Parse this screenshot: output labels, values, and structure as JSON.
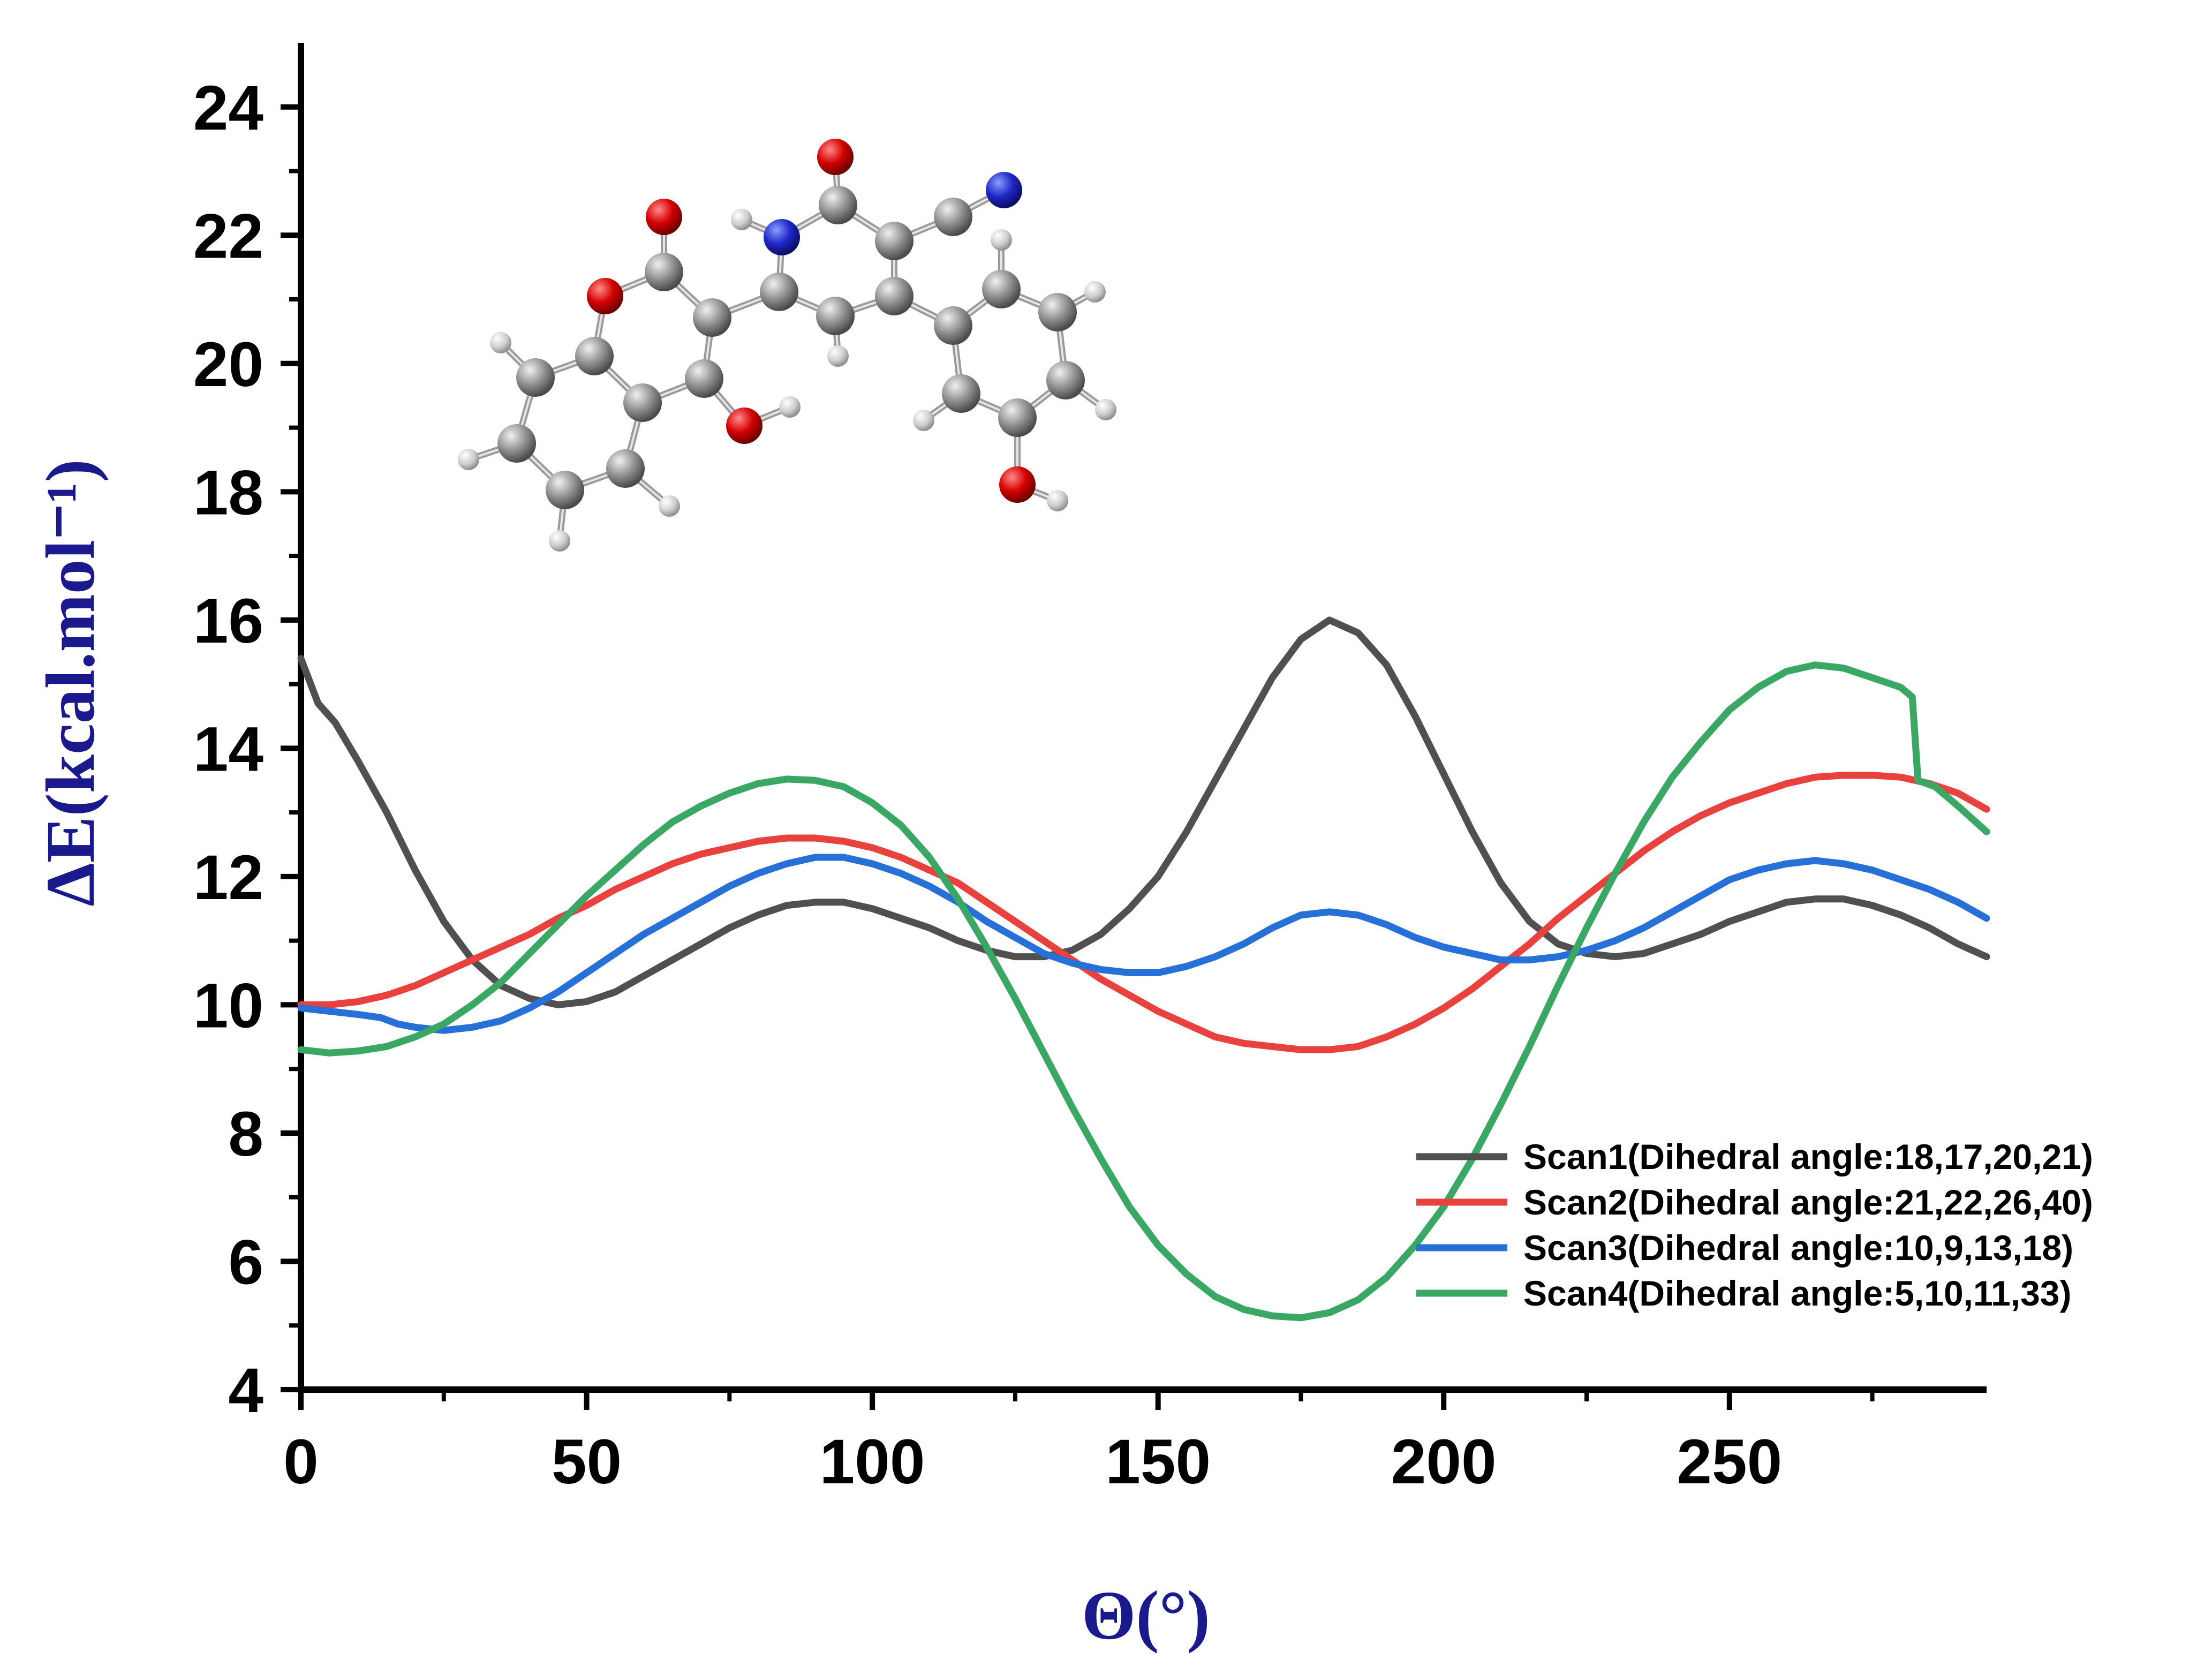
{
  "chart_data": {
    "type": "line",
    "title": "",
    "xlabel": "Θ(°)",
    "ylabel": "ΔE(kcal.mol⁻¹)",
    "xlim": [
      0,
      295
    ],
    "ylim": [
      4,
      25
    ],
    "xticks": [
      0,
      50,
      100,
      150,
      200,
      250
    ],
    "xtick_labels": [
      "0",
      "50",
      "100",
      "150",
      "200",
      "250"
    ],
    "yticks": [
      4,
      6,
      8,
      10,
      12,
      14,
      16,
      18,
      20,
      22,
      24
    ],
    "ytick_labels": [
      "4",
      "6",
      "8",
      "10",
      "12",
      "14",
      "16",
      "18",
      "20",
      "22",
      "24"
    ],
    "legend_position": "bottom-right",
    "series": [
      {
        "name": "Scan1(Dihedral angle:18,17,20,21)",
        "color": "#505050",
        "points": [
          [
            0,
            15.4
          ],
          [
            3,
            14.7
          ],
          [
            6,
            14.4
          ],
          [
            10,
            13.8
          ],
          [
            15,
            13.0
          ],
          [
            20,
            12.1
          ],
          [
            25,
            11.3
          ],
          [
            30,
            10.7
          ],
          [
            35,
            10.3
          ],
          [
            40,
            10.1
          ],
          [
            45,
            10.0
          ],
          [
            50,
            10.05
          ],
          [
            55,
            10.2
          ],
          [
            60,
            10.45
          ],
          [
            65,
            10.7
          ],
          [
            70,
            10.95
          ],
          [
            75,
            11.2
          ],
          [
            80,
            11.4
          ],
          [
            85,
            11.55
          ],
          [
            90,
            11.6
          ],
          [
            95,
            11.6
          ],
          [
            100,
            11.5
          ],
          [
            105,
            11.35
          ],
          [
            110,
            11.2
          ],
          [
            115,
            11.0
          ],
          [
            120,
            10.85
          ],
          [
            125,
            10.75
          ],
          [
            130,
            10.75
          ],
          [
            135,
            10.85
          ],
          [
            140,
            11.1
          ],
          [
            145,
            11.5
          ],
          [
            150,
            12.0
          ],
          [
            155,
            12.7
          ],
          [
            160,
            13.5
          ],
          [
            165,
            14.3
          ],
          [
            170,
            15.1
          ],
          [
            175,
            15.7
          ],
          [
            180,
            16.0
          ],
          [
            185,
            15.8
          ],
          [
            190,
            15.3
          ],
          [
            195,
            14.5
          ],
          [
            200,
            13.6
          ],
          [
            205,
            12.7
          ],
          [
            210,
            11.9
          ],
          [
            215,
            11.3
          ],
          [
            220,
            10.95
          ],
          [
            225,
            10.8
          ],
          [
            230,
            10.75
          ],
          [
            235,
            10.8
          ],
          [
            240,
            10.95
          ],
          [
            245,
            11.1
          ],
          [
            250,
            11.3
          ],
          [
            255,
            11.45
          ],
          [
            260,
            11.6
          ],
          [
            265,
            11.65
          ],
          [
            270,
            11.65
          ],
          [
            275,
            11.55
          ],
          [
            280,
            11.4
          ],
          [
            285,
            11.2
          ],
          [
            290,
            10.95
          ],
          [
            295,
            10.75
          ]
        ]
      },
      {
        "name": "Scan2(Dihedral angle:21,22,26,40)",
        "color": "#e8413e",
        "points": [
          [
            0,
            10.0
          ],
          [
            5,
            10.0
          ],
          [
            10,
            10.05
          ],
          [
            15,
            10.15
          ],
          [
            20,
            10.3
          ],
          [
            25,
            10.5
          ],
          [
            30,
            10.7
          ],
          [
            35,
            10.9
          ],
          [
            40,
            11.1
          ],
          [
            45,
            11.35
          ],
          [
            50,
            11.55
          ],
          [
            55,
            11.8
          ],
          [
            60,
            12.0
          ],
          [
            65,
            12.2
          ],
          [
            70,
            12.35
          ],
          [
            75,
            12.45
          ],
          [
            80,
            12.55
          ],
          [
            85,
            12.6
          ],
          [
            90,
            12.6
          ],
          [
            95,
            12.55
          ],
          [
            100,
            12.45
          ],
          [
            105,
            12.3
          ],
          [
            110,
            12.1
          ],
          [
            115,
            11.9
          ],
          [
            120,
            11.6
          ],
          [
            125,
            11.3
          ],
          [
            130,
            11.0
          ],
          [
            135,
            10.7
          ],
          [
            140,
            10.4
          ],
          [
            145,
            10.15
          ],
          [
            150,
            9.9
          ],
          [
            155,
            9.7
          ],
          [
            160,
            9.5
          ],
          [
            165,
            9.4
          ],
          [
            170,
            9.35
          ],
          [
            175,
            9.3
          ],
          [
            180,
            9.3
          ],
          [
            185,
            9.35
          ],
          [
            190,
            9.5
          ],
          [
            195,
            9.7
          ],
          [
            200,
            9.95
          ],
          [
            205,
            10.25
          ],
          [
            210,
            10.6
          ],
          [
            215,
            10.95
          ],
          [
            220,
            11.35
          ],
          [
            225,
            11.7
          ],
          [
            230,
            12.05
          ],
          [
            235,
            12.4
          ],
          [
            240,
            12.7
          ],
          [
            245,
            12.95
          ],
          [
            250,
            13.15
          ],
          [
            255,
            13.3
          ],
          [
            260,
            13.45
          ],
          [
            265,
            13.55
          ],
          [
            270,
            13.58
          ],
          [
            275,
            13.58
          ],
          [
            280,
            13.55
          ],
          [
            285,
            13.45
          ],
          [
            290,
            13.3
          ],
          [
            295,
            13.05
          ]
        ]
      },
      {
        "name": "Scan3(Dihedral angle:10,9,13,18)",
        "color": "#2670d8",
        "points": [
          [
            0,
            9.95
          ],
          [
            5,
            9.9
          ],
          [
            10,
            9.85
          ],
          [
            14,
            9.8
          ],
          [
            17,
            9.7
          ],
          [
            20,
            9.65
          ],
          [
            25,
            9.6
          ],
          [
            30,
            9.65
          ],
          [
            35,
            9.75
          ],
          [
            40,
            9.95
          ],
          [
            45,
            10.2
          ],
          [
            50,
            10.5
          ],
          [
            55,
            10.8
          ],
          [
            60,
            11.1
          ],
          [
            65,
            11.35
          ],
          [
            70,
            11.6
          ],
          [
            75,
            11.85
          ],
          [
            80,
            12.05
          ],
          [
            85,
            12.2
          ],
          [
            90,
            12.3
          ],
          [
            95,
            12.3
          ],
          [
            100,
            12.2
          ],
          [
            105,
            12.05
          ],
          [
            110,
            11.85
          ],
          [
            115,
            11.6
          ],
          [
            120,
            11.3
          ],
          [
            125,
            11.05
          ],
          [
            130,
            10.8
          ],
          [
            135,
            10.65
          ],
          [
            140,
            10.55
          ],
          [
            145,
            10.5
          ],
          [
            150,
            10.5
          ],
          [
            155,
            10.6
          ],
          [
            160,
            10.75
          ],
          [
            165,
            10.95
          ],
          [
            170,
            11.2
          ],
          [
            175,
            11.4
          ],
          [
            180,
            11.45
          ],
          [
            185,
            11.4
          ],
          [
            190,
            11.25
          ],
          [
            195,
            11.05
          ],
          [
            200,
            10.9
          ],
          [
            205,
            10.8
          ],
          [
            210,
            10.7
          ],
          [
            215,
            10.7
          ],
          [
            220,
            10.75
          ],
          [
            225,
            10.85
          ],
          [
            230,
            11.0
          ],
          [
            235,
            11.2
          ],
          [
            240,
            11.45
          ],
          [
            245,
            11.7
          ],
          [
            250,
            11.95
          ],
          [
            255,
            12.1
          ],
          [
            260,
            12.2
          ],
          [
            265,
            12.25
          ],
          [
            270,
            12.2
          ],
          [
            275,
            12.1
          ],
          [
            280,
            11.95
          ],
          [
            285,
            11.8
          ],
          [
            290,
            11.6
          ],
          [
            295,
            11.35
          ]
        ]
      },
      {
        "name": "Scan4(Dihedral angle:5,10,11,33)",
        "color": "#3aa765",
        "points": [
          [
            0,
            9.3
          ],
          [
            5,
            9.25
          ],
          [
            10,
            9.28
          ],
          [
            15,
            9.35
          ],
          [
            20,
            9.5
          ],
          [
            25,
            9.7
          ],
          [
            30,
            10.0
          ],
          [
            35,
            10.35
          ],
          [
            40,
            10.8
          ],
          [
            45,
            11.25
          ],
          [
            50,
            11.7
          ],
          [
            55,
            12.1
          ],
          [
            60,
            12.5
          ],
          [
            65,
            12.85
          ],
          [
            70,
            13.1
          ],
          [
            75,
            13.3
          ],
          [
            80,
            13.45
          ],
          [
            85,
            13.52
          ],
          [
            90,
            13.5
          ],
          [
            95,
            13.4
          ],
          [
            100,
            13.15
          ],
          [
            105,
            12.8
          ],
          [
            110,
            12.3
          ],
          [
            115,
            11.65
          ],
          [
            120,
            10.9
          ],
          [
            125,
            10.1
          ],
          [
            130,
            9.25
          ],
          [
            135,
            8.4
          ],
          [
            140,
            7.6
          ],
          [
            145,
            6.85
          ],
          [
            150,
            6.25
          ],
          [
            155,
            5.8
          ],
          [
            160,
            5.45
          ],
          [
            165,
            5.25
          ],
          [
            170,
            5.15
          ],
          [
            175,
            5.12
          ],
          [
            180,
            5.2
          ],
          [
            185,
            5.4
          ],
          [
            190,
            5.75
          ],
          [
            195,
            6.25
          ],
          [
            200,
            6.85
          ],
          [
            205,
            7.6
          ],
          [
            210,
            8.45
          ],
          [
            215,
            9.35
          ],
          [
            220,
            10.3
          ],
          [
            225,
            11.2
          ],
          [
            230,
            12.05
          ],
          [
            235,
            12.85
          ],
          [
            240,
            13.55
          ],
          [
            245,
            14.1
          ],
          [
            250,
            14.6
          ],
          [
            255,
            14.95
          ],
          [
            260,
            15.2
          ],
          [
            265,
            15.3
          ],
          [
            270,
            15.25
          ],
          [
            275,
            15.1
          ],
          [
            280,
            14.95
          ],
          [
            282,
            14.8
          ],
          [
            283,
            13.5
          ],
          [
            286,
            13.4
          ],
          [
            290,
            13.1
          ],
          [
            295,
            12.7
          ]
        ]
      }
    ]
  },
  "molecule": {
    "description_icon": "molecule-structure-icon",
    "atom_colors": {
      "C": "#8a8a8a",
      "H": "#d8d8d8",
      "O": "#d40000",
      "N": "#1f28c8"
    }
  }
}
